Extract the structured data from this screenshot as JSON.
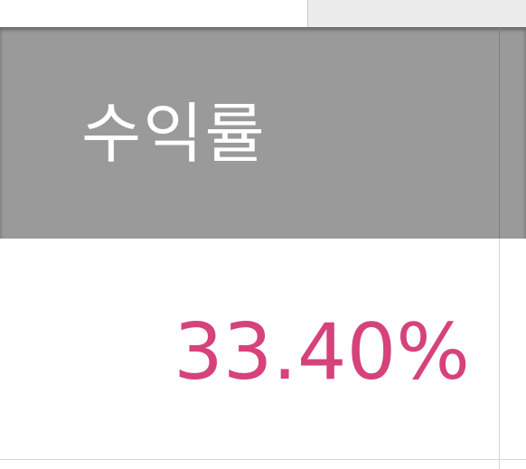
{
  "table": {
    "column_header": "수익률",
    "row_value": "33.40%"
  },
  "colors": {
    "header_bg": "#9a9a9a",
    "header_text": "#ffffff",
    "value_text": "#d6427b"
  }
}
